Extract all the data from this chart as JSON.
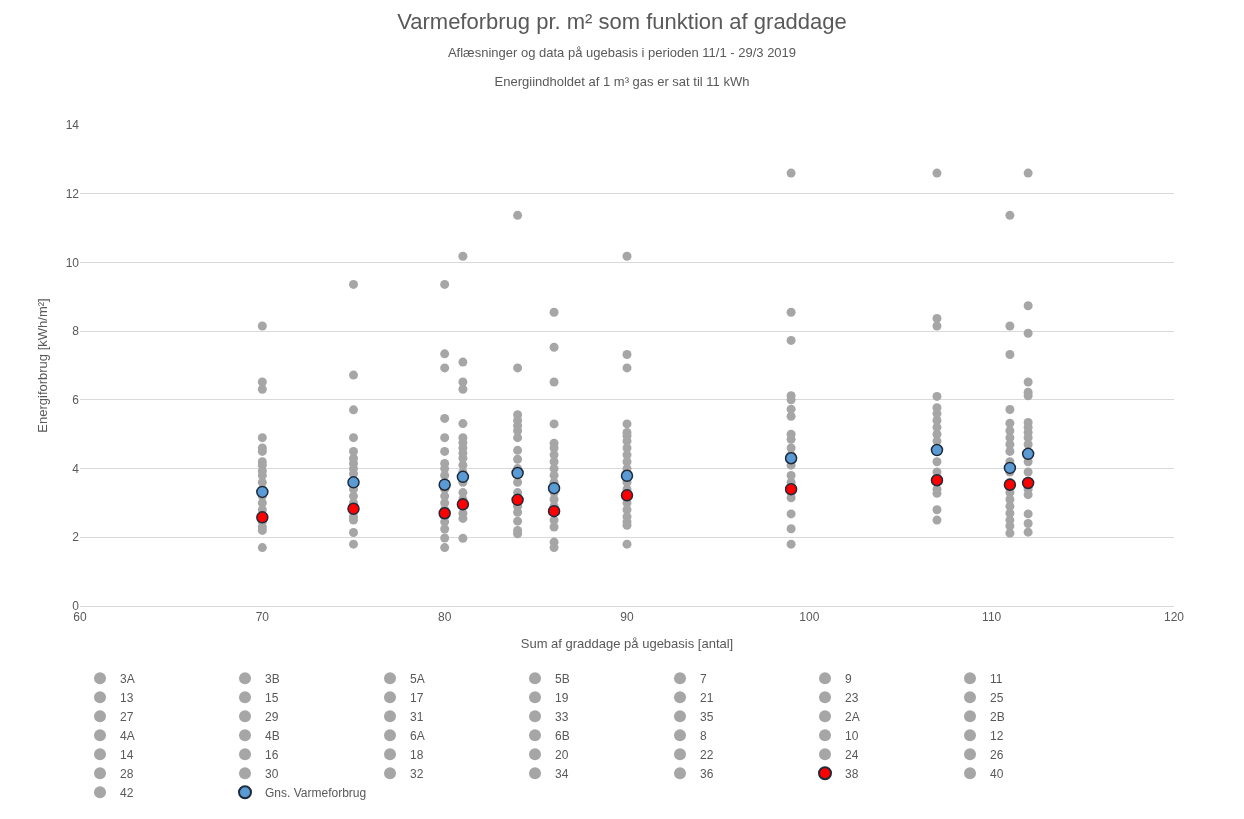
{
  "chart_data": {
    "type": "scatter",
    "title": "Varmeforbrug pr. m² som funktion af graddage",
    "subtitle": "Aflæsninger og data på ugebasis i perioden 11/1 - 29/3 2019\nEnergiindholdet af 1 m³ gas er sat til 11 kWh",
    "xlabel": "Sum af graddage på ugebasis [antal]",
    "ylabel": "Energiforbrug [kWh/m²]",
    "x": [
      70,
      75,
      80,
      81,
      84,
      86,
      90,
      99,
      107,
      111,
      112
    ],
    "xlim": [
      60,
      120
    ],
    "xticks": [
      60,
      70,
      80,
      90,
      100,
      110,
      120
    ],
    "ylim": [
      0,
      14
    ],
    "yticks": [
      0,
      2,
      4,
      6,
      8,
      10,
      12,
      14
    ],
    "grid": "y",
    "legend": "bottom",
    "marker": "circle",
    "series": [
      {
        "color": "#a6a6a6",
        "x": [
          70,
          70,
          70,
          70,
          70,
          70,
          70,
          70,
          70,
          70,
          70,
          70,
          70,
          70,
          70,
          70,
          70,
          70,
          70,
          75,
          75,
          75,
          75,
          75,
          75,
          75,
          75,
          75,
          75,
          75,
          75,
          75,
          75,
          75,
          75,
          80,
          80,
          80,
          80,
          80,
          80,
          80,
          80,
          80,
          80,
          80,
          80,
          80,
          80,
          80,
          80,
          80,
          80,
          81,
          81,
          81,
          81,
          81,
          81,
          81,
          81,
          81,
          81,
          81,
          81,
          81,
          81,
          81,
          81,
          81,
          81,
          84,
          84,
          84,
          84,
          84,
          84,
          84,
          84,
          84,
          84,
          84,
          84,
          84,
          84,
          84,
          84,
          84,
          86,
          86,
          86,
          86,
          86,
          86,
          86,
          86,
          86,
          86,
          86,
          86,
          86,
          86,
          86,
          86,
          86,
          86,
          90,
          90,
          90,
          90,
          90,
          90,
          90,
          90,
          90,
          90,
          90,
          90,
          90,
          90,
          90,
          90,
          90,
          90,
          90,
          99,
          99,
          99,
          99,
          99,
          99,
          99,
          99,
          99,
          99,
          99,
          99,
          99,
          99,
          99,
          99,
          99,
          99,
          99,
          107,
          107,
          107,
          107,
          107,
          107,
          107,
          107,
          107,
          107,
          107,
          107,
          107,
          107,
          107,
          107,
          111,
          111,
          111,
          111,
          111,
          111,
          111,
          111,
          111,
          111,
          111,
          111,
          111,
          111,
          111,
          111,
          111,
          111,
          111,
          112,
          112,
          112,
          112,
          112,
          112,
          112,
          112,
          112,
          112,
          112,
          112,
          112,
          112,
          112,
          112,
          112,
          112
        ],
        "values": [
          8.15,
          6.52,
          6.31,
          4.9,
          4.6,
          4.5,
          4.2,
          4.1,
          3.93,
          3.8,
          3.6,
          3.4,
          3.2,
          3.0,
          2.8,
          2.45,
          2.3,
          2.2,
          1.7,
          9.36,
          6.72,
          5.71,
          4.9,
          4.5,
          4.3,
          4.15,
          4.0,
          3.85,
          3.4,
          3.2,
          3.0,
          2.6,
          2.5,
          2.14,
          1.8,
          9.36,
          7.34,
          6.93,
          5.46,
          4.9,
          4.5,
          4.15,
          4.0,
          3.8,
          3.4,
          3.2,
          3.0,
          2.8,
          2.6,
          2.45,
          2.24,
          1.98,
          1.7,
          10.18,
          7.1,
          6.52,
          6.31,
          5.31,
          4.9,
          4.75,
          4.6,
          4.45,
          4.3,
          4.1,
          3.9,
          3.6,
          3.3,
          3.1,
          2.7,
          2.55,
          1.97,
          11.37,
          6.93,
          5.57,
          5.4,
          5.25,
          5.1,
          4.9,
          4.53,
          4.27,
          4.0,
          3.6,
          3.3,
          2.9,
          2.73,
          2.47,
          2.2,
          2.1,
          8.55,
          7.53,
          6.52,
          5.3,
          4.74,
          4.6,
          4.4,
          4.2,
          4.0,
          3.8,
          3.6,
          3.3,
          3.1,
          2.9,
          2.5,
          2.3,
          1.86,
          1.7,
          10.18,
          7.32,
          6.93,
          5.3,
          5.05,
          4.95,
          4.8,
          4.6,
          4.4,
          4.2,
          4.0,
          3.6,
          3.4,
          3.0,
          2.8,
          2.6,
          2.45,
          2.35,
          1.8,
          12.6,
          8.55,
          7.73,
          6.12,
          6.0,
          5.73,
          5.52,
          5.0,
          4.85,
          4.6,
          4.4,
          4.1,
          3.8,
          3.6,
          3.3,
          3.15,
          2.68,
          2.25,
          1.8,
          12.6,
          8.37,
          8.15,
          6.1,
          5.77,
          5.6,
          5.4,
          5.2,
          5.0,
          4.8,
          4.2,
          3.9,
          3.4,
          3.28,
          2.8,
          2.5,
          11.37,
          8.15,
          7.32,
          5.72,
          5.32,
          5.1,
          4.9,
          4.7,
          4.5,
          4.2,
          3.9,
          3.6,
          3.3,
          3.1,
          2.9,
          2.7,
          2.5,
          2.33,
          2.12,
          12.6,
          8.74,
          7.94,
          6.52,
          6.22,
          6.12,
          5.34,
          5.2,
          5.05,
          4.9,
          4.7,
          4.2,
          3.9,
          3.4,
          3.24,
          2.68,
          2.4,
          2.15
        ]
      },
      {
        "name": "3A",
        "color": "#a6a6a6",
        "values": [
          null,
          null,
          null,
          null,
          null,
          null,
          null,
          null,
          null,
          null,
          null
        ]
      },
      {
        "name": "3B",
        "color": "#a6a6a6",
        "values": [
          null,
          null,
          null,
          null,
          null,
          null,
          null,
          null,
          null,
          null,
          null
        ]
      },
      {
        "name": "5A",
        "color": "#a6a6a6",
        "values": [
          null,
          null,
          null,
          null,
          null,
          null,
          null,
          null,
          null,
          null,
          null
        ]
      },
      {
        "name": "5B",
        "color": "#a6a6a6",
        "values": [
          null,
          null,
          null,
          null,
          null,
          null,
          null,
          null,
          null,
          null,
          null
        ]
      },
      {
        "name": "7",
        "color": "#a6a6a6",
        "values": [
          null,
          null,
          null,
          null,
          null,
          null,
          null,
          null,
          null,
          null,
          null
        ]
      },
      {
        "name": "9",
        "color": "#a6a6a6",
        "values": [
          null,
          null,
          null,
          null,
          null,
          null,
          null,
          null,
          null,
          null,
          null
        ]
      },
      {
        "name": "11",
        "color": "#a6a6a6",
        "values": [
          null,
          null,
          null,
          null,
          null,
          null,
          null,
          null,
          null,
          null,
          null
        ]
      },
      {
        "name": "13",
        "color": "#a6a6a6",
        "values": [
          null,
          null,
          null,
          null,
          null,
          null,
          null,
          null,
          null,
          null,
          null
        ]
      },
      {
        "name": "15",
        "color": "#a6a6a6",
        "values": [
          null,
          null,
          null,
          null,
          null,
          null,
          null,
          null,
          null,
          null,
          null
        ]
      },
      {
        "name": "17",
        "color": "#a6a6a6",
        "values": [
          null,
          null,
          null,
          null,
          null,
          null,
          null,
          null,
          null,
          null,
          null
        ]
      },
      {
        "name": "19",
        "color": "#a6a6a6",
        "values": [
          null,
          null,
          null,
          null,
          null,
          null,
          null,
          null,
          null,
          null,
          null
        ]
      },
      {
        "name": "21",
        "color": "#a6a6a6",
        "values": [
          null,
          null,
          null,
          null,
          null,
          null,
          null,
          null,
          null,
          null,
          null
        ]
      },
      {
        "name": "23",
        "color": "#a6a6a6",
        "values": [
          null,
          null,
          null,
          null,
          null,
          null,
          null,
          null,
          null,
          null,
          null
        ]
      },
      {
        "name": "25",
        "color": "#a6a6a6",
        "values": [
          null,
          null,
          null,
          null,
          null,
          null,
          null,
          null,
          null,
          null,
          null
        ]
      },
      {
        "name": "27",
        "color": "#a6a6a6",
        "values": [
          null,
          null,
          null,
          null,
          null,
          null,
          null,
          null,
          null,
          null,
          null
        ]
      },
      {
        "name": "29",
        "color": "#a6a6a6",
        "values": [
          null,
          null,
          null,
          null,
          null,
          null,
          null,
          null,
          null,
          null,
          null
        ]
      },
      {
        "name": "31",
        "color": "#a6a6a6",
        "values": [
          null,
          null,
          null,
          null,
          null,
          null,
          null,
          null,
          null,
          null,
          null
        ]
      },
      {
        "name": "33",
        "color": "#a6a6a6",
        "values": [
          null,
          null,
          null,
          null,
          null,
          null,
          null,
          null,
          null,
          null,
          null
        ]
      },
      {
        "name": "35",
        "color": "#a6a6a6",
        "values": [
          null,
          null,
          null,
          null,
          null,
          null,
          null,
          null,
          null,
          null,
          null
        ]
      },
      {
        "name": "2A",
        "color": "#a6a6a6",
        "values": [
          null,
          null,
          null,
          null,
          null,
          null,
          null,
          null,
          null,
          null,
          null
        ]
      },
      {
        "name": "2B",
        "color": "#a6a6a6",
        "values": [
          null,
          null,
          null,
          null,
          null,
          null,
          null,
          null,
          null,
          null,
          null
        ]
      },
      {
        "name": "4A",
        "color": "#a6a6a6",
        "values": [
          null,
          null,
          null,
          null,
          null,
          null,
          null,
          null,
          null,
          null,
          null
        ]
      },
      {
        "name": "4B",
        "color": "#a6a6a6",
        "values": [
          null,
          null,
          null,
          null,
          null,
          null,
          null,
          null,
          null,
          null,
          null
        ]
      },
      {
        "name": "6A",
        "color": "#a6a6a6",
        "values": [
          null,
          null,
          null,
          null,
          null,
          null,
          null,
          null,
          null,
          null,
          null
        ]
      },
      {
        "name": "6B",
        "color": "#a6a6a6",
        "values": [
          null,
          null,
          null,
          null,
          null,
          null,
          null,
          null,
          null,
          null,
          null
        ]
      },
      {
        "name": "8",
        "color": "#a6a6a6",
        "values": [
          null,
          null,
          null,
          null,
          null,
          null,
          null,
          null,
          null,
          null,
          null
        ]
      },
      {
        "name": "10",
        "color": "#a6a6a6",
        "values": [
          null,
          null,
          null,
          null,
          null,
          null,
          null,
          null,
          null,
          null,
          null
        ]
      },
      {
        "name": "12",
        "color": "#a6a6a6",
        "values": [
          null,
          null,
          null,
          null,
          null,
          null,
          null,
          null,
          null,
          null,
          null
        ]
      },
      {
        "name": "14",
        "color": "#a6a6a6",
        "values": [
          null,
          null,
          null,
          null,
          null,
          null,
          null,
          null,
          null,
          null,
          null
        ]
      },
      {
        "name": "16",
        "color": "#a6a6a6",
        "values": [
          null,
          null,
          null,
          null,
          null,
          null,
          null,
          null,
          null,
          null,
          null
        ]
      },
      {
        "name": "18",
        "color": "#a6a6a6",
        "values": [
          null,
          null,
          null,
          null,
          null,
          null,
          null,
          null,
          null,
          null,
          null
        ]
      },
      {
        "name": "20",
        "color": "#a6a6a6",
        "values": [
          null,
          null,
          null,
          null,
          null,
          null,
          null,
          null,
          null,
          null,
          null
        ]
      },
      {
        "name": "22",
        "color": "#a6a6a6",
        "values": [
          null,
          null,
          null,
          null,
          null,
          null,
          null,
          null,
          null,
          null,
          null
        ]
      },
      {
        "name": "24",
        "color": "#a6a6a6",
        "values": [
          null,
          null,
          null,
          null,
          null,
          null,
          null,
          null,
          null,
          null,
          null
        ]
      },
      {
        "name": "26",
        "color": "#a6a6a6",
        "values": [
          null,
          null,
          null,
          null,
          null,
          null,
          null,
          null,
          null,
          null,
          null
        ]
      },
      {
        "name": "28",
        "color": "#a6a6a6",
        "values": [
          null,
          null,
          null,
          null,
          null,
          null,
          null,
          null,
          null,
          null,
          null
        ]
      },
      {
        "name": "30",
        "color": "#a6a6a6",
        "values": [
          null,
          null,
          null,
          null,
          null,
          null,
          null,
          null,
          null,
          null,
          null
        ]
      },
      {
        "name": "32",
        "color": "#a6a6a6",
        "values": [
          null,
          null,
          null,
          null,
          null,
          null,
          null,
          null,
          null,
          null,
          null
        ]
      },
      {
        "name": "34",
        "color": "#a6a6a6",
        "values": [
          null,
          null,
          null,
          null,
          null,
          null,
          null,
          null,
          null,
          null,
          null
        ]
      },
      {
        "name": "36",
        "color": "#a6a6a6",
        "values": [
          null,
          null,
          null,
          null,
          null,
          null,
          null,
          null,
          null,
          null,
          null
        ]
      },
      {
        "name": "38",
        "color": "#ff0000",
        "values": [
          2.58,
          2.83,
          2.7,
          2.96,
          3.09,
          2.76,
          3.22,
          3.4,
          3.66,
          3.53,
          3.58
        ]
      },
      {
        "name": "40",
        "color": "#a6a6a6",
        "values": [
          null,
          null,
          null,
          null,
          null,
          null,
          null,
          null,
          null,
          null,
          null
        ]
      },
      {
        "name": "42",
        "color": "#a6a6a6",
        "values": [
          null,
          null,
          null,
          null,
          null,
          null,
          null,
          null,
          null,
          null,
          null
        ]
      },
      {
        "name": "Gns. Varmeforbrug",
        "color": "#5b9bd5",
        "values": [
          3.32,
          3.6,
          3.53,
          3.76,
          3.87,
          3.43,
          3.79,
          4.3,
          4.54,
          4.02,
          4.43
        ]
      }
    ]
  }
}
